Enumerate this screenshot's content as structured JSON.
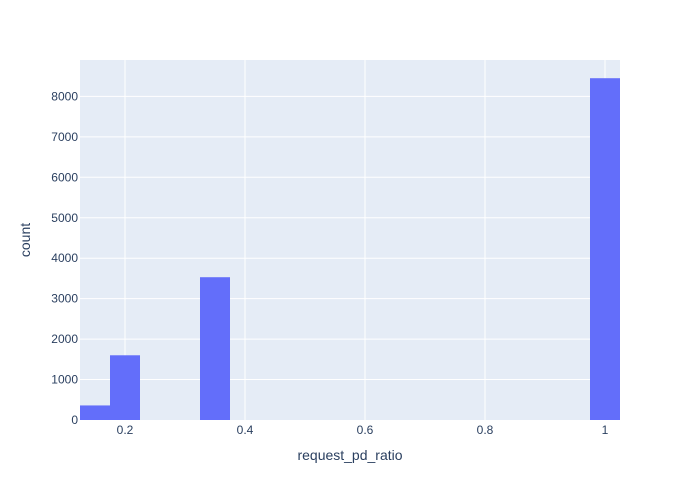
{
  "chart_data": {
    "type": "bar",
    "subtype": "histogram",
    "xlabel": "request_pd_ratio",
    "ylabel": "count",
    "xlim": [
      0.125,
      1.025
    ],
    "ylim": [
      0,
      8900
    ],
    "x_ticks": [
      {
        "value": 0.2,
        "label": "0.2"
      },
      {
        "value": 0.4,
        "label": "0.4"
      },
      {
        "value": 0.6,
        "label": "0.6"
      },
      {
        "value": 0.8,
        "label": "0.8"
      },
      {
        "value": 1.0,
        "label": "1"
      }
    ],
    "y_ticks": [
      {
        "value": 0,
        "label": "0"
      },
      {
        "value": 1000,
        "label": "1000"
      },
      {
        "value": 2000,
        "label": "2000"
      },
      {
        "value": 3000,
        "label": "3000"
      },
      {
        "value": 4000,
        "label": "4000"
      },
      {
        "value": 5000,
        "label": "5000"
      },
      {
        "value": 6000,
        "label": "6000"
      },
      {
        "value": 7000,
        "label": "7000"
      },
      {
        "value": 8000,
        "label": "8000"
      }
    ],
    "bins": [
      {
        "x0": 0.125,
        "x1": 0.175,
        "count": 360
      },
      {
        "x0": 0.175,
        "x1": 0.225,
        "count": 1600
      },
      {
        "x0": 0.325,
        "x1": 0.375,
        "count": 3530
      },
      {
        "x0": 0.975,
        "x1": 1.025,
        "count": 8450
      }
    ],
    "grid": true,
    "colors": {
      "bar": "#636efa",
      "plot_background": "#e5ecf6",
      "grid": "#ffffff",
      "text": "#2a3f5f"
    }
  }
}
